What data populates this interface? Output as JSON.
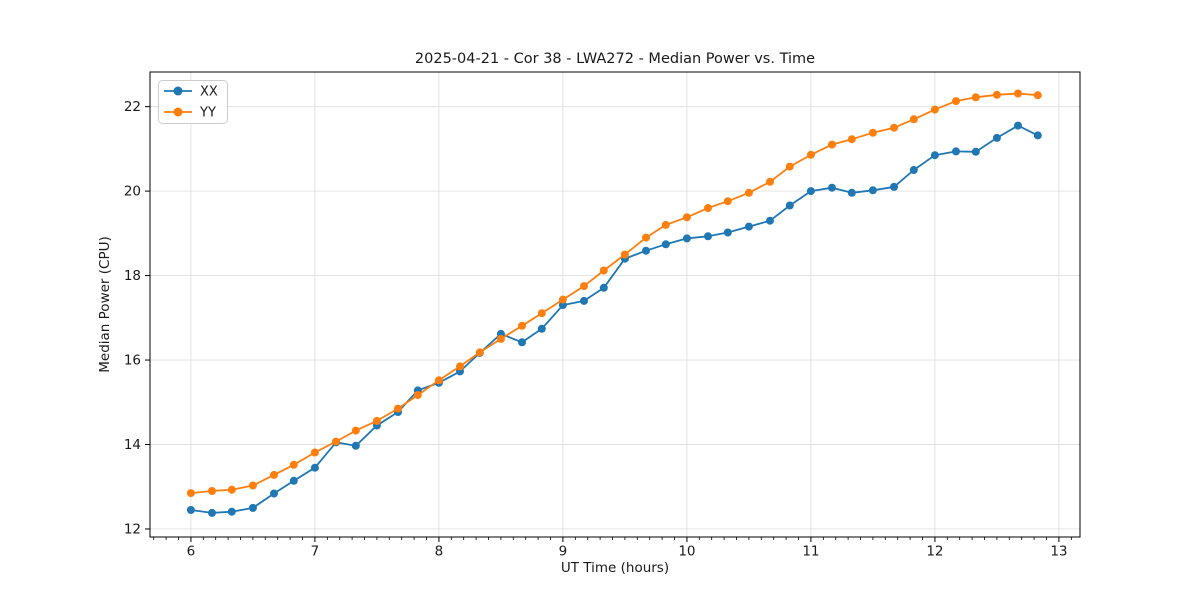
{
  "figure": {
    "background": "#ffffff",
    "spine_color": "#000000",
    "tick_color": "#000000"
  },
  "chart_data": {
    "type": "line",
    "title": "2025-04-21 - Cor 38 - LWA272 - Median Power vs. Time",
    "xlabel": "UT Time (hours)",
    "ylabel": "Median Power (CPU)",
    "xlim": [
      5.67,
      13.17
    ],
    "ylim": [
      11.81,
      22.82
    ],
    "xticks": [
      6,
      7,
      8,
      9,
      10,
      11,
      12,
      13
    ],
    "yticks": [
      12,
      14,
      16,
      18,
      20,
      22
    ],
    "x_minor_step": 0.1,
    "grid": true,
    "grid_color": "#e0e0e0",
    "legend": {
      "position": "upper-left"
    },
    "x": [
      6.0,
      6.17,
      6.33,
      6.5,
      6.67,
      6.83,
      7.0,
      7.17,
      7.33,
      7.5,
      7.67,
      7.83,
      8.0,
      8.17,
      8.33,
      8.5,
      8.67,
      8.83,
      9.0,
      9.17,
      9.33,
      9.5,
      9.67,
      9.83,
      10.0,
      10.17,
      10.33,
      10.5,
      10.67,
      10.83,
      11.0,
      11.17,
      11.33,
      11.5,
      11.67,
      11.83,
      12.0,
      12.17,
      12.33,
      12.5,
      12.67,
      12.83
    ],
    "series": [
      {
        "name": "XX",
        "color": "#1f77b4",
        "values": [
          12.45,
          12.38,
          12.41,
          12.5,
          12.84,
          13.14,
          13.45,
          14.05,
          13.97,
          14.45,
          14.77,
          15.28,
          15.46,
          15.73,
          16.17,
          16.62,
          16.42,
          16.74,
          17.3,
          17.4,
          17.71,
          18.4,
          18.59,
          18.74,
          18.88,
          18.93,
          19.02,
          19.16,
          19.3,
          19.66,
          20.0,
          20.08,
          19.96,
          20.02,
          20.1,
          20.5,
          20.85,
          20.94,
          20.93,
          21.26,
          21.55,
          21.32
        ]
      },
      {
        "name": "YY",
        "color": "#ff7f0e",
        "values": [
          12.85,
          12.9,
          12.93,
          13.03,
          13.28,
          13.52,
          13.81,
          14.07,
          14.33,
          14.56,
          14.85,
          15.17,
          15.52,
          15.85,
          16.18,
          16.5,
          16.81,
          17.11,
          17.43,
          17.75,
          18.12,
          18.5,
          18.9,
          19.2,
          19.38,
          19.6,
          19.76,
          19.96,
          20.22,
          20.58,
          20.86,
          21.1,
          21.23,
          21.38,
          21.5,
          21.7,
          21.93,
          22.13,
          22.22,
          22.28,
          22.31,
          22.27
        ]
      }
    ]
  }
}
